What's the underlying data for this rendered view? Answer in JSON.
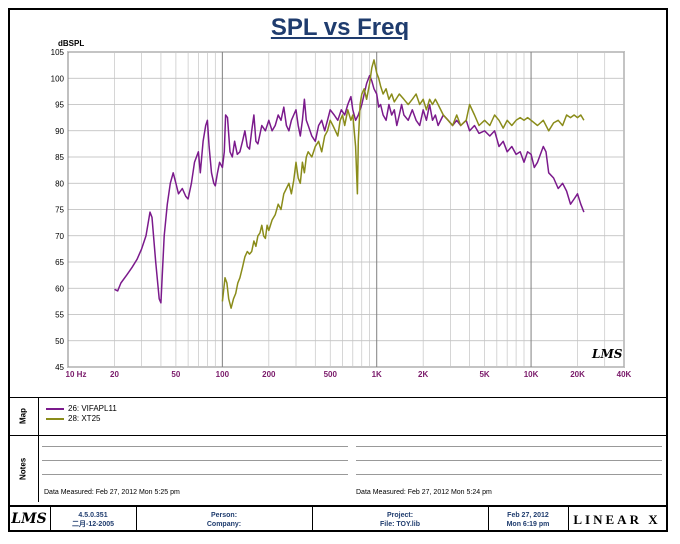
{
  "chart_data": {
    "type": "line",
    "title": "SPL vs Freq",
    "ylabel": "dBSPL",
    "xlabel": "Hz",
    "xscale": "log",
    "xlim": [
      10,
      40000
    ],
    "ylim": [
      45,
      105
    ],
    "yticks": [
      45,
      50,
      55,
      60,
      65,
      70,
      75,
      80,
      85,
      90,
      95,
      100,
      105
    ],
    "xticks": [
      {
        "value": 10,
        "label": "10  Hz"
      },
      {
        "value": 20,
        "label": "20"
      },
      {
        "value": 50,
        "label": "50"
      },
      {
        "value": 100,
        "label": "100"
      },
      {
        "value": 200,
        "label": "200"
      },
      {
        "value": 500,
        "label": "500"
      },
      {
        "value": 1000,
        "label": "1K"
      },
      {
        "value": 2000,
        "label": "2K"
      },
      {
        "value": 5000,
        "label": "5K"
      },
      {
        "value": 10000,
        "label": "10K"
      },
      {
        "value": 20000,
        "label": "20K"
      },
      {
        "value": 40000,
        "label": "40K"
      }
    ],
    "series": [
      {
        "name": "26: VIFAPL11",
        "color": "#7b1a8c",
        "points": [
          [
            20,
            59.8
          ],
          [
            21,
            59.5
          ],
          [
            22,
            61
          ],
          [
            24,
            62.5
          ],
          [
            26,
            64
          ],
          [
            28,
            65.5
          ],
          [
            30,
            67.5
          ],
          [
            32,
            70
          ],
          [
            34,
            74.5
          ],
          [
            35,
            73.5
          ],
          [
            37,
            65
          ],
          [
            39,
            58
          ],
          [
            40,
            57.2
          ],
          [
            42,
            70
          ],
          [
            44,
            76
          ],
          [
            46,
            80
          ],
          [
            48,
            82
          ],
          [
            50,
            80
          ],
          [
            52,
            78
          ],
          [
            55,
            79
          ],
          [
            58,
            77.5
          ],
          [
            60,
            77
          ],
          [
            63,
            80
          ],
          [
            66,
            84
          ],
          [
            70,
            86
          ],
          [
            72,
            82
          ],
          [
            75,
            88
          ],
          [
            78,
            91
          ],
          [
            80,
            92
          ],
          [
            82,
            87
          ],
          [
            85,
            82
          ],
          [
            88,
            80
          ],
          [
            90,
            79.5
          ],
          [
            93,
            82
          ],
          [
            96,
            84
          ],
          [
            100,
            83
          ],
          [
            103,
            86
          ],
          [
            105,
            93
          ],
          [
            108,
            92.5
          ],
          [
            112,
            86
          ],
          [
            116,
            85
          ],
          [
            120,
            88
          ],
          [
            125,
            85.5
          ],
          [
            130,
            86
          ],
          [
            135,
            88
          ],
          [
            140,
            90
          ],
          [
            145,
            87
          ],
          [
            150,
            86.5
          ],
          [
            155,
            90
          ],
          [
            160,
            93
          ],
          [
            165,
            88
          ],
          [
            170,
            87.5
          ],
          [
            180,
            91
          ],
          [
            190,
            90
          ],
          [
            200,
            92
          ],
          [
            210,
            90
          ],
          [
            220,
            91
          ],
          [
            230,
            93
          ],
          [
            240,
            92
          ],
          [
            250,
            94.5
          ],
          [
            260,
            91
          ],
          [
            270,
            90
          ],
          [
            280,
            92
          ],
          [
            290,
            93
          ],
          [
            300,
            94
          ],
          [
            310,
            91
          ],
          [
            320,
            89
          ],
          [
            330,
            92
          ],
          [
            340,
            96
          ],
          [
            350,
            92
          ],
          [
            360,
            91
          ],
          [
            380,
            89
          ],
          [
            400,
            88
          ],
          [
            420,
            91
          ],
          [
            440,
            92
          ],
          [
            460,
            90
          ],
          [
            480,
            92
          ],
          [
            500,
            94
          ],
          [
            530,
            93
          ],
          [
            560,
            92
          ],
          [
            590,
            94
          ],
          [
            620,
            93
          ],
          [
            650,
            95
          ],
          [
            680,
            96.5
          ],
          [
            700,
            94
          ],
          [
            730,
            92
          ],
          [
            760,
            93
          ],
          [
            800,
            95
          ],
          [
            830,
            97
          ],
          [
            860,
            99
          ],
          [
            900,
            100.5
          ],
          [
            930,
            99.5
          ],
          [
            960,
            98
          ],
          [
            1000,
            97
          ],
          [
            1030,
            94.5
          ],
          [
            1060,
            95
          ],
          [
            1100,
            93
          ],
          [
            1150,
            92
          ],
          [
            1200,
            95
          ],
          [
            1250,
            93
          ],
          [
            1300,
            94
          ],
          [
            1350,
            91
          ],
          [
            1400,
            93
          ],
          [
            1450,
            95
          ],
          [
            1500,
            93
          ],
          [
            1600,
            92
          ],
          [
            1700,
            94
          ],
          [
            1800,
            92
          ],
          [
            1900,
            91
          ],
          [
            2000,
            94
          ],
          [
            2100,
            92
          ],
          [
            2200,
            95
          ],
          [
            2300,
            92
          ],
          [
            2400,
            93
          ],
          [
            2500,
            91
          ],
          [
            2700,
            93
          ],
          [
            2900,
            92
          ],
          [
            3100,
            91
          ],
          [
            3300,
            92
          ],
          [
            3500,
            91
          ],
          [
            3800,
            92
          ],
          [
            4000,
            90
          ],
          [
            4300,
            91
          ],
          [
            4600,
            89.5
          ],
          [
            5000,
            90
          ],
          [
            5400,
            89
          ],
          [
            5800,
            90
          ],
          [
            6200,
            87
          ],
          [
            6600,
            88
          ],
          [
            7000,
            86
          ],
          [
            7500,
            87
          ],
          [
            8000,
            85.5
          ],
          [
            8500,
            86
          ],
          [
            9000,
            84
          ],
          [
            9500,
            86
          ],
          [
            10000,
            85.5
          ],
          [
            10500,
            83
          ],
          [
            11000,
            84
          ],
          [
            12000,
            87
          ],
          [
            12500,
            86
          ],
          [
            13000,
            82
          ],
          [
            14000,
            81
          ],
          [
            15000,
            79
          ],
          [
            16000,
            80
          ],
          [
            17000,
            78.5
          ],
          [
            18000,
            76
          ],
          [
            19000,
            77
          ],
          [
            20000,
            78
          ],
          [
            21000,
            76
          ],
          [
            22000,
            74.5
          ]
        ]
      },
      {
        "name": "28: XT25",
        "color": "#8a8c1a",
        "points": [
          [
            100,
            57.5
          ],
          [
            104,
            62
          ],
          [
            107,
            61
          ],
          [
            110,
            58
          ],
          [
            114,
            56.2
          ],
          [
            118,
            58
          ],
          [
            122,
            59
          ],
          [
            126,
            61
          ],
          [
            130,
            62
          ],
          [
            135,
            64
          ],
          [
            140,
            66
          ],
          [
            145,
            67
          ],
          [
            150,
            66.5
          ],
          [
            155,
            67
          ],
          [
            160,
            69
          ],
          [
            165,
            68
          ],
          [
            170,
            70
          ],
          [
            175,
            70.5
          ],
          [
            180,
            72
          ],
          [
            185,
            70
          ],
          [
            190,
            69.5
          ],
          [
            195,
            72
          ],
          [
            200,
            71
          ],
          [
            210,
            73
          ],
          [
            220,
            74
          ],
          [
            230,
            76
          ],
          [
            240,
            75
          ],
          [
            250,
            78
          ],
          [
            260,
            79
          ],
          [
            270,
            80
          ],
          [
            280,
            78
          ],
          [
            290,
            80.5
          ],
          [
            300,
            84
          ],
          [
            310,
            81
          ],
          [
            320,
            80
          ],
          [
            330,
            84
          ],
          [
            340,
            82
          ],
          [
            350,
            85
          ],
          [
            360,
            86
          ],
          [
            380,
            85
          ],
          [
            400,
            87
          ],
          [
            420,
            88
          ],
          [
            440,
            86
          ],
          [
            460,
            89
          ],
          [
            480,
            90
          ],
          [
            500,
            92
          ],
          [
            520,
            91
          ],
          [
            540,
            90
          ],
          [
            560,
            89
          ],
          [
            580,
            92
          ],
          [
            600,
            93
          ],
          [
            620,
            91
          ],
          [
            650,
            94
          ],
          [
            680,
            92
          ],
          [
            700,
            93
          ],
          [
            730,
            87
          ],
          [
            750,
            78
          ],
          [
            760,
            88
          ],
          [
            780,
            95
          ],
          [
            800,
            97
          ],
          [
            830,
            98
          ],
          [
            860,
            96
          ],
          [
            900,
            99
          ],
          [
            930,
            102
          ],
          [
            960,
            103.5
          ],
          [
            1000,
            101
          ],
          [
            1030,
            100
          ],
          [
            1060,
            98.5
          ],
          [
            1100,
            97
          ],
          [
            1150,
            98
          ],
          [
            1200,
            96
          ],
          [
            1250,
            97
          ],
          [
            1300,
            95.5
          ],
          [
            1400,
            97
          ],
          [
            1500,
            96
          ],
          [
            1600,
            95
          ],
          [
            1700,
            96
          ],
          [
            1800,
            97
          ],
          [
            1900,
            95
          ],
          [
            2000,
            96
          ],
          [
            2100,
            94
          ],
          [
            2200,
            96
          ],
          [
            2300,
            95
          ],
          [
            2400,
            96
          ],
          [
            2500,
            95
          ],
          [
            2700,
            93
          ],
          [
            2900,
            92
          ],
          [
            3100,
            91
          ],
          [
            3300,
            93
          ],
          [
            3500,
            91
          ],
          [
            3800,
            92
          ],
          [
            4000,
            95
          ],
          [
            4300,
            93
          ],
          [
            4600,
            91
          ],
          [
            5000,
            92
          ],
          [
            5400,
            91
          ],
          [
            5800,
            93
          ],
          [
            6200,
            92
          ],
          [
            6600,
            90.5
          ],
          [
            7000,
            92
          ],
          [
            7500,
            91
          ],
          [
            8000,
            92
          ],
          [
            8500,
            92.5
          ],
          [
            9000,
            92
          ],
          [
            9500,
            92.5
          ],
          [
            10000,
            92
          ],
          [
            11000,
            91
          ],
          [
            12000,
            92
          ],
          [
            13000,
            90
          ],
          [
            14000,
            91.5
          ],
          [
            15000,
            92
          ],
          [
            16000,
            91
          ],
          [
            17000,
            93
          ],
          [
            18000,
            92.5
          ],
          [
            19000,
            93
          ],
          [
            20000,
            92.5
          ],
          [
            21000,
            93
          ],
          [
            22000,
            92
          ]
        ]
      }
    ]
  },
  "map": {
    "label": "Map",
    "legend": [
      {
        "name": "26: VIFAPL11",
        "color": "#7b1a8c"
      },
      {
        "name": "28: XT25",
        "color": "#8a8c1a"
      }
    ]
  },
  "notes": {
    "label": "Notes",
    "left_measured": "Data Measured: Feb 27, 2012  Mon  5:25 pm",
    "right_measured": "Data Measured: Feb 27, 2012  Mon  5:24 pm"
  },
  "footer": {
    "logo": "LMS",
    "version": "4.5.0.351",
    "build_date": "二月-12-2005",
    "person_label": "Person:",
    "company_label": "Company:",
    "project_label": "Project:",
    "file_label": "File: TOY.lib",
    "date_line1": "Feb 27, 2012",
    "date_line2": "Mon  6:19 pm",
    "brand": "LINEAR X"
  },
  "watermark_logo": "LMS"
}
